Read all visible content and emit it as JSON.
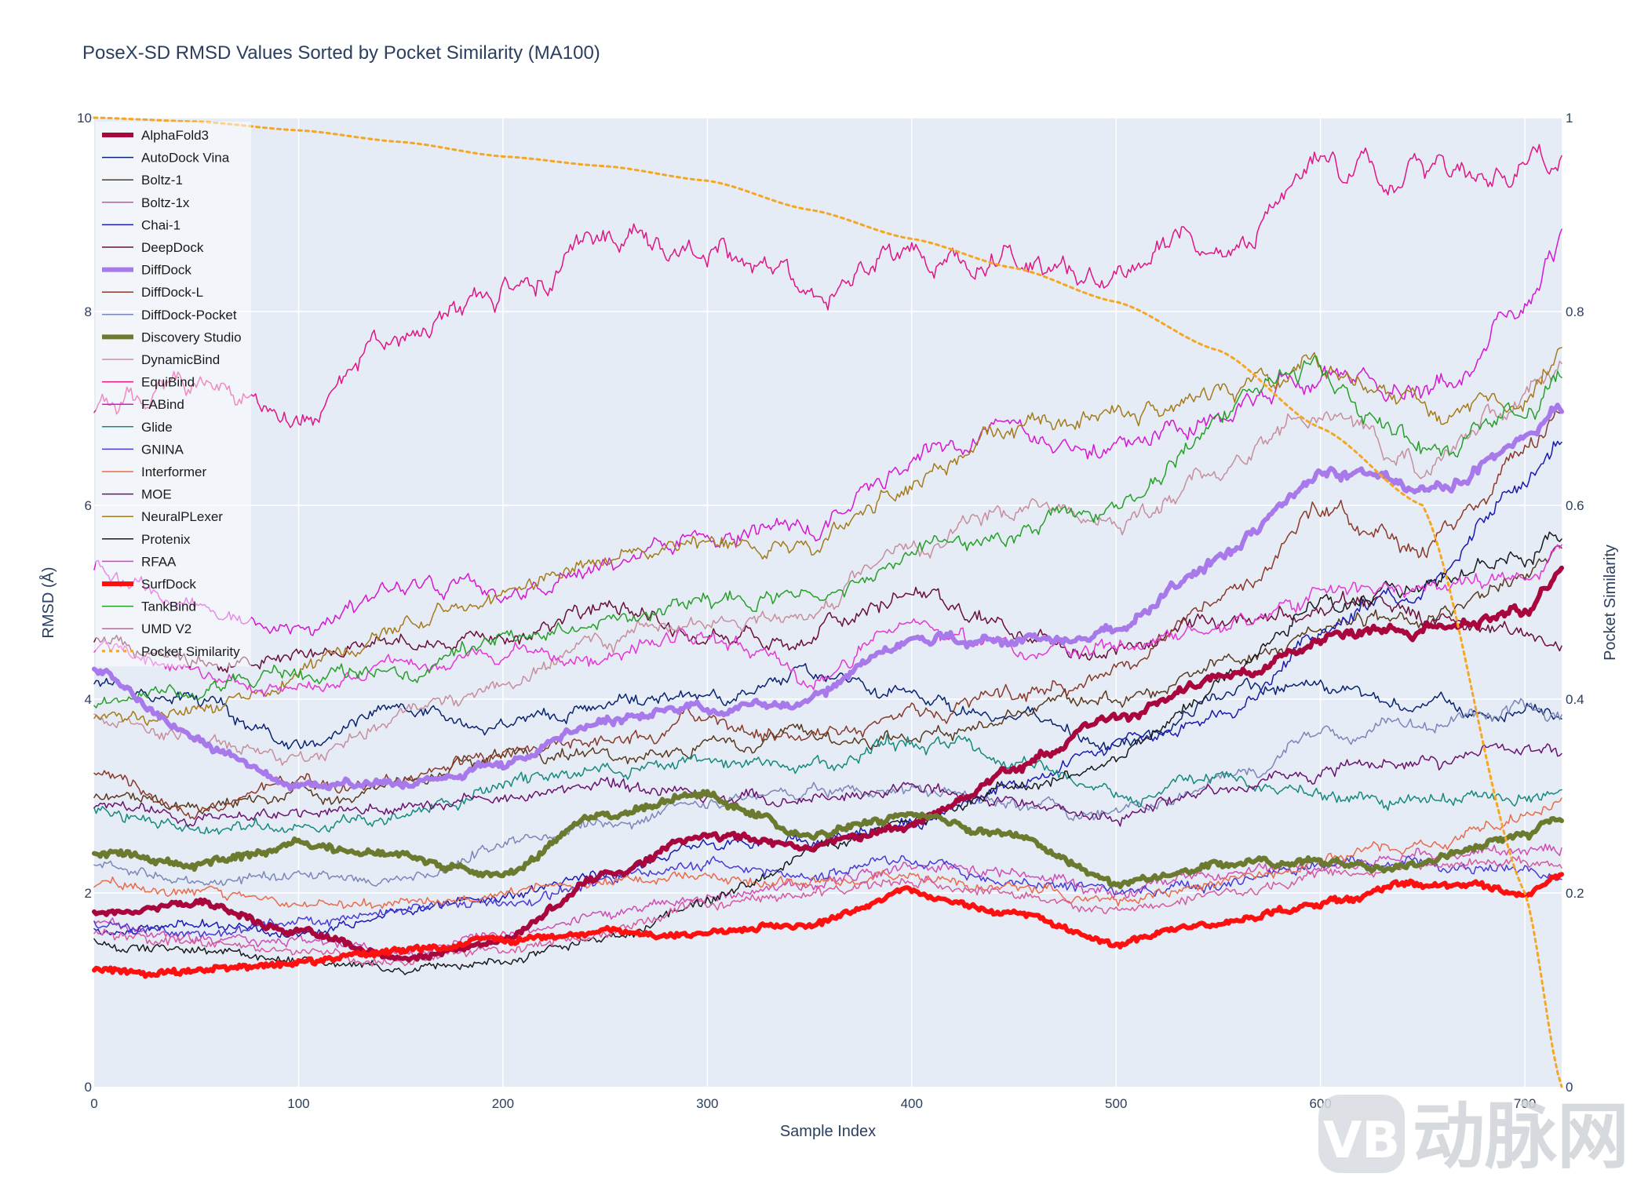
{
  "chart_data": {
    "type": "line",
    "title": "PoseX-SD RMSD Values Sorted by Pocket Similarity (MA100)",
    "xlabel": "Sample Index",
    "ylabel": "RMSD (Å)",
    "y2label": "Pocket Similarity",
    "xlim": [
      0,
      718
    ],
    "ylim": [
      0,
      10
    ],
    "y2lim": [
      0,
      1
    ],
    "xticks": [
      "0",
      "100",
      "200",
      "300",
      "400",
      "500",
      "600",
      "700"
    ],
    "yticks": [
      "0",
      "2",
      "4",
      "6",
      "8",
      "10"
    ],
    "y2ticks": [
      "0",
      "0.2",
      "0.4",
      "0.6",
      "0.8",
      "1"
    ],
    "grid": true,
    "legend_position": "top-left",
    "x": [
      0,
      50,
      100,
      150,
      200,
      250,
      300,
      350,
      400,
      450,
      500,
      550,
      600,
      650,
      700,
      718
    ],
    "series": [
      {
        "name": "AlphaFold3",
        "color": "#a8063c",
        "width": 6,
        "dash": "solid",
        "axis": "y",
        "values": [
          1.8,
          1.9,
          1.6,
          1.3,
          1.5,
          2.2,
          2.6,
          2.5,
          2.7,
          3.3,
          3.8,
          4.2,
          4.6,
          4.7,
          4.9,
          5.3
        ]
      },
      {
        "name": "AutoDock Vina",
        "color": "#0c2470",
        "width": 1.5,
        "dash": "solid",
        "axis": "y",
        "values": [
          4.2,
          4.0,
          3.5,
          3.9,
          3.8,
          3.9,
          4.0,
          4.3,
          4.1,
          3.8,
          3.5,
          4.0,
          4.2,
          3.9,
          3.9,
          3.8
        ]
      },
      {
        "name": "Boltz-1",
        "color": "#5a3a1e",
        "width": 1.5,
        "dash": "solid",
        "axis": "y",
        "values": [
          3.0,
          2.9,
          3.0,
          3.1,
          3.4,
          3.4,
          3.5,
          3.6,
          3.6,
          3.9,
          4.0,
          4.4,
          4.6,
          4.9,
          5.2,
          5.6
        ]
      },
      {
        "name": "Boltz-1x",
        "color": "#d04eb4",
        "width": 1.5,
        "dash": "solid",
        "axis": "y",
        "values": [
          1.7,
          1.5,
          1.5,
          1.4,
          1.6,
          1.8,
          2.0,
          2.1,
          2.3,
          2.2,
          2.0,
          2.2,
          2.3,
          2.4,
          2.4,
          2.4
        ]
      },
      {
        "name": "Chai-1",
        "color": "#1b1bb2",
        "width": 1.5,
        "dash": "solid",
        "axis": "y",
        "values": [
          1.6,
          1.7,
          1.6,
          1.8,
          2.0,
          2.2,
          2.5,
          2.5,
          2.7,
          3.1,
          3.5,
          3.9,
          4.6,
          5.2,
          6.2,
          6.6
        ]
      },
      {
        "name": "DeepDock",
        "color": "#6b1038",
        "width": 1.5,
        "dash": "solid",
        "axis": "y",
        "values": [
          4.6,
          4.4,
          4.4,
          4.6,
          4.7,
          5.0,
          4.6,
          4.7,
          5.1,
          4.7,
          4.5,
          4.8,
          5.0,
          4.8,
          4.6,
          4.6
        ]
      },
      {
        "name": "DiffDock",
        "color": "#a879ea",
        "width": 6,
        "dash": "solid",
        "axis": "y",
        "values": [
          4.3,
          3.6,
          3.1,
          3.1,
          3.3,
          3.8,
          3.9,
          4.0,
          4.6,
          4.6,
          4.7,
          5.5,
          6.3,
          6.1,
          6.6,
          7.0
        ]
      },
      {
        "name": "DiffDock-L",
        "color": "#8b3a2a",
        "width": 1.5,
        "dash": "solid",
        "axis": "y",
        "values": [
          3.2,
          2.8,
          3.1,
          3.2,
          3.5,
          3.6,
          3.8,
          3.6,
          3.9,
          4.0,
          4.3,
          5.0,
          6.0,
          5.5,
          6.5,
          6.9
        ]
      },
      {
        "name": "DiffDock-Pocket",
        "color": "#7d86b8",
        "width": 1.5,
        "dash": "solid",
        "axis": "y",
        "values": [
          2.3,
          2.1,
          2.2,
          2.1,
          2.5,
          2.7,
          2.9,
          3.1,
          3.1,
          2.9,
          2.8,
          3.1,
          3.6,
          3.7,
          3.9,
          3.8
        ]
      },
      {
        "name": "Discovery Studio",
        "color": "#6b7a2e",
        "width": 6,
        "dash": "solid",
        "axis": "y",
        "values": [
          2.4,
          2.3,
          2.5,
          2.4,
          2.2,
          2.8,
          3.0,
          2.6,
          2.8,
          2.6,
          2.1,
          2.3,
          2.3,
          2.3,
          2.6,
          2.8
        ]
      },
      {
        "name": "DynamicBind",
        "color": "#c78f9c",
        "width": 1.5,
        "dash": "solid",
        "axis": "y",
        "values": [
          3.8,
          3.6,
          3.4,
          3.8,
          4.2,
          4.7,
          4.8,
          4.9,
          5.6,
          6.0,
          5.8,
          6.3,
          7.0,
          6.3,
          7.2,
          7.4
        ]
      },
      {
        "name": "EquiBind",
        "color": "#e01686",
        "width": 1.5,
        "dash": "solid",
        "axis": "y",
        "values": [
          7.0,
          7.2,
          6.9,
          7.8,
          8.2,
          8.7,
          8.7,
          8.1,
          8.6,
          8.6,
          8.3,
          8.8,
          9.5,
          9.4,
          9.4,
          9.6
        ]
      },
      {
        "name": "FABind",
        "color": "#d617d3",
        "width": 1.5,
        "dash": "solid",
        "axis": "y",
        "values": [
          5.4,
          4.9,
          4.7,
          5.2,
          5.1,
          5.4,
          5.7,
          5.8,
          6.5,
          6.9,
          6.6,
          7.0,
          7.3,
          7.1,
          8.0,
          8.7
        ]
      },
      {
        "name": "Glide",
        "color": "#17897d",
        "width": 1.5,
        "dash": "solid",
        "axis": "y",
        "values": [
          2.9,
          2.6,
          2.7,
          2.8,
          3.1,
          3.3,
          3.4,
          3.3,
          3.6,
          3.4,
          3.0,
          3.2,
          3.0,
          2.9,
          3.0,
          3.0
        ]
      },
      {
        "name": "GNINA",
        "color": "#4a3ad6",
        "width": 1.5,
        "dash": "solid",
        "axis": "y",
        "values": [
          1.7,
          1.6,
          1.7,
          1.8,
          1.9,
          2.1,
          2.3,
          2.2,
          2.3,
          2.1,
          2.0,
          2.1,
          2.3,
          2.3,
          2.3,
          2.2
        ]
      },
      {
        "name": "Interformer",
        "color": "#ea6a4a",
        "width": 1.5,
        "dash": "solid",
        "axis": "y",
        "values": [
          2.1,
          2.0,
          1.9,
          1.9,
          2.0,
          2.1,
          2.2,
          2.1,
          2.2,
          2.1,
          1.9,
          2.1,
          2.3,
          2.5,
          2.8,
          2.9
        ]
      },
      {
        "name": "MOE",
        "color": "#6a1470",
        "width": 1.5,
        "dash": "solid",
        "axis": "y",
        "values": [
          2.9,
          2.8,
          2.8,
          2.9,
          3.0,
          3.1,
          3.0,
          3.0,
          3.1,
          2.9,
          2.8,
          3.1,
          3.3,
          3.3,
          3.5,
          3.5
        ]
      },
      {
        "name": "NeuralPLexer",
        "color": "#a57b1c",
        "width": 1.5,
        "dash": "solid",
        "axis": "y",
        "values": [
          3.8,
          3.9,
          4.2,
          4.8,
          5.1,
          5.5,
          5.6,
          5.6,
          6.2,
          6.8,
          6.9,
          7.1,
          7.5,
          7.0,
          7.2,
          7.7
        ]
      },
      {
        "name": "Protenix",
        "color": "#1b1b1b",
        "width": 1.5,
        "dash": "solid",
        "axis": "y",
        "values": [
          1.5,
          1.4,
          1.3,
          1.2,
          1.3,
          1.5,
          1.9,
          2.4,
          2.8,
          3.1,
          3.4,
          4.2,
          5.0,
          5.2,
          5.6,
          5.7
        ]
      },
      {
        "name": "RFAA",
        "color": "#e636d6",
        "width": 1.5,
        "dash": "solid",
        "axis": "y",
        "values": [
          4.5,
          4.3,
          4.1,
          4.4,
          4.5,
          4.4,
          4.7,
          4.2,
          4.7,
          4.5,
          4.6,
          4.8,
          5.1,
          5.1,
          5.3,
          5.5
        ]
      },
      {
        "name": "SurfDock",
        "color": "#ff1010",
        "width": 6,
        "dash": "solid",
        "axis": "y",
        "values": [
          1.2,
          1.2,
          1.3,
          1.4,
          1.5,
          1.6,
          1.6,
          1.7,
          2.0,
          1.8,
          1.5,
          1.7,
          1.9,
          2.1,
          2.0,
          2.2
        ]
      },
      {
        "name": "TankBind",
        "color": "#27a02a",
        "width": 1.5,
        "dash": "solid",
        "axis": "y",
        "values": [
          3.9,
          4.1,
          4.3,
          4.2,
          4.6,
          4.9,
          5.0,
          5.1,
          5.5,
          5.7,
          5.9,
          6.9,
          7.5,
          6.5,
          7.0,
          7.4
        ]
      },
      {
        "name": "UMD V2",
        "color": "#d65aa0",
        "width": 1.5,
        "dash": "solid",
        "axis": "y",
        "values": [
          1.6,
          1.5,
          1.4,
          1.3,
          1.4,
          1.6,
          1.9,
          2.0,
          2.1,
          2.0,
          1.8,
          2.0,
          2.2,
          2.3,
          2.3,
          2.3
        ]
      },
      {
        "name": "Pocket Similarity",
        "color": "#f5a623",
        "width": 3,
        "dash": "dot",
        "axis": "y2",
        "values": [
          1.0,
          0.996,
          0.987,
          0.975,
          0.96,
          0.95,
          0.935,
          0.905,
          0.875,
          0.845,
          0.81,
          0.76,
          0.68,
          0.6,
          0.2,
          0.0
        ]
      }
    ]
  },
  "watermark": {
    "mark": "VB",
    "text": "动脉网"
  }
}
